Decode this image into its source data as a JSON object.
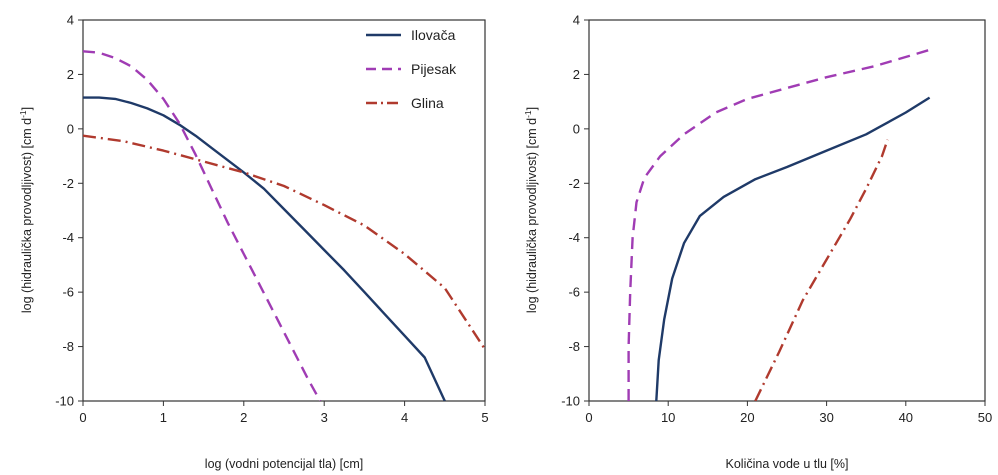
{
  "chart_data": [
    {
      "type": "line",
      "xlabel": "log (vodni potencijal tla) [cm]",
      "ylabel": "log  (hidraulička provodljivost) [cm d",
      "ylabel_sup": "-1",
      "ylabel_tail": "]",
      "xlim": [
        0,
        5
      ],
      "ylim": [
        -10,
        4
      ],
      "xticks": [
        0,
        1,
        2,
        3,
        4,
        5
      ],
      "yticks": [
        4,
        2,
        0,
        -2,
        -4,
        -6,
        -8,
        -10
      ],
      "grid": false,
      "legend_position": "top-right",
      "series": [
        {
          "name": "Ilovača",
          "color": "#1f3a68",
          "dash": "solid",
          "points": [
            [
              0,
              1.15
            ],
            [
              0.2,
              1.15
            ],
            [
              0.4,
              1.1
            ],
            [
              0.6,
              0.95
            ],
            [
              0.8,
              0.75
            ],
            [
              1.0,
              0.5
            ],
            [
              1.2,
              0.15
            ],
            [
              1.4,
              -0.25
            ],
            [
              1.6,
              -0.7
            ],
            [
              1.8,
              -1.15
            ],
            [
              2.0,
              -1.6
            ],
            [
              2.25,
              -2.2
            ],
            [
              2.5,
              -2.95
            ],
            [
              2.75,
              -3.7
            ],
            [
              3.0,
              -4.45
            ],
            [
              3.25,
              -5.2
            ],
            [
              3.5,
              -6.0
            ],
            [
              3.75,
              -6.8
            ],
            [
              4.0,
              -7.6
            ],
            [
              4.25,
              -8.4
            ],
            [
              4.5,
              -10.0
            ]
          ]
        },
        {
          "name": "Pijesak",
          "color": "#a03cb4",
          "dash": "long-dash",
          "points": [
            [
              0,
              2.85
            ],
            [
              0.2,
              2.8
            ],
            [
              0.4,
              2.6
            ],
            [
              0.6,
              2.3
            ],
            [
              0.8,
              1.8
            ],
            [
              1.0,
              1.1
            ],
            [
              1.2,
              0.2
            ],
            [
              1.4,
              -0.95
            ],
            [
              1.6,
              -2.2
            ],
            [
              1.8,
              -3.45
            ],
            [
              2.0,
              -4.6
            ],
            [
              2.2,
              -5.75
            ],
            [
              2.4,
              -6.9
            ],
            [
              2.6,
              -8.05
            ],
            [
              2.8,
              -9.2
            ],
            [
              2.95,
              -10.0
            ]
          ]
        },
        {
          "name": "Glina",
          "color": "#b03a2e",
          "dash": "dash-dot",
          "points": [
            [
              0,
              -0.25
            ],
            [
              0.5,
              -0.45
            ],
            [
              1.0,
              -0.8
            ],
            [
              1.5,
              -1.2
            ],
            [
              2.0,
              -1.6
            ],
            [
              2.5,
              -2.1
            ],
            [
              3.0,
              -2.8
            ],
            [
              3.5,
              -3.55
            ],
            [
              4.0,
              -4.6
            ],
            [
              4.5,
              -5.85
            ],
            [
              5.0,
              -8.1
            ]
          ]
        }
      ]
    },
    {
      "type": "line",
      "xlabel": "Količina vode u tlu [%]",
      "ylabel": "log  (hidraulička provodljivost) [cm d",
      "ylabel_sup": "-1",
      "ylabel_tail": "]",
      "xlim": [
        0,
        50
      ],
      "ylim": [
        -10,
        4
      ],
      "xticks": [
        0,
        10,
        20,
        30,
        40,
        50
      ],
      "yticks": [
        4,
        2,
        0,
        -2,
        -4,
        -6,
        -8,
        -10
      ],
      "grid": false,
      "series": [
        {
          "name": "Ilovača",
          "color": "#1f3a68",
          "dash": "solid",
          "points": [
            [
              8.5,
              -10.0
            ],
            [
              8.8,
              -8.5
            ],
            [
              9.5,
              -7.0
            ],
            [
              10.5,
              -5.5
            ],
            [
              12.0,
              -4.2
            ],
            [
              14.0,
              -3.2
            ],
            [
              17.0,
              -2.5
            ],
            [
              21.0,
              -1.85
            ],
            [
              25.0,
              -1.4
            ],
            [
              30.0,
              -0.8
            ],
            [
              35.0,
              -0.2
            ],
            [
              40.0,
              0.6
            ],
            [
              43.0,
              1.15
            ]
          ]
        },
        {
          "name": "Pijesak",
          "color": "#a03cb4",
          "dash": "long-dash",
          "points": [
            [
              5.0,
              -10.0
            ],
            [
              5.0,
              -8.0
            ],
            [
              5.2,
              -6.0
            ],
            [
              5.5,
              -4.0
            ],
            [
              6.0,
              -2.7
            ],
            [
              7.0,
              -1.8
            ],
            [
              9.0,
              -1.0
            ],
            [
              12.0,
              -0.2
            ],
            [
              16.0,
              0.6
            ],
            [
              20.0,
              1.1
            ],
            [
              25.0,
              1.5
            ],
            [
              30.0,
              1.9
            ],
            [
              36.0,
              2.3
            ],
            [
              43.0,
              2.9
            ]
          ]
        },
        {
          "name": "Glina",
          "color": "#b03a2e",
          "dash": "dash-dot",
          "points": [
            [
              21.0,
              -10.0
            ],
            [
              24.0,
              -8.2
            ],
            [
              27.0,
              -6.3
            ],
            [
              30.0,
              -4.8
            ],
            [
              33.0,
              -3.3
            ],
            [
              35.0,
              -2.2
            ],
            [
              37.0,
              -1.0
            ],
            [
              37.7,
              -0.4
            ]
          ]
        }
      ]
    }
  ]
}
